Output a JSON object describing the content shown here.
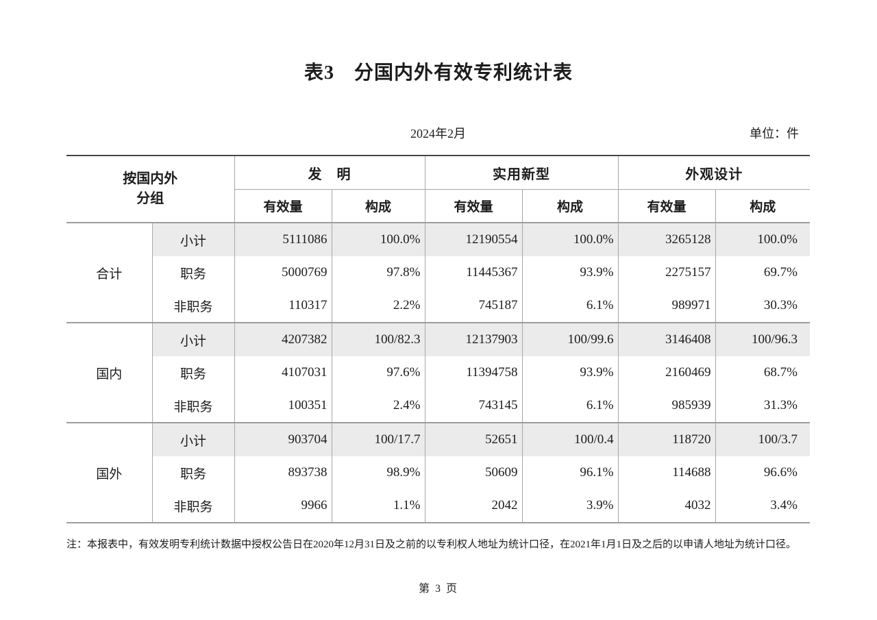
{
  "title": "表3　分国内外有效专利统计表",
  "date": "2024年2月",
  "unit": "单位：件",
  "table": {
    "group_header": "按国内外\n分组",
    "sections": [
      {
        "label": "发　明",
        "subcols": [
          "有效量",
          "构成"
        ]
      },
      {
        "label": "实用新型",
        "subcols": [
          "有效量",
          "构成"
        ]
      },
      {
        "label": "外观设计",
        "subcols": [
          "有效量",
          "构成"
        ]
      }
    ],
    "groups": [
      {
        "label": "合计",
        "rows": [
          {
            "label": "小计",
            "values": [
              "5111086",
              "100.0%",
              "12190554",
              "100.0%",
              "3265128",
              "100.0%"
            ]
          },
          {
            "label": "职务",
            "values": [
              "5000769",
              "97.8%",
              "11445367",
              "93.9%",
              "2275157",
              "69.7%"
            ]
          },
          {
            "label": "非职务",
            "values": [
              "110317",
              "2.2%",
              "745187",
              "6.1%",
              "989971",
              "30.3%"
            ]
          }
        ]
      },
      {
        "label": "国内",
        "rows": [
          {
            "label": "小计",
            "values": [
              "4207382",
              "100/82.3",
              "12137903",
              "100/99.6",
              "3146408",
              "100/96.3"
            ]
          },
          {
            "label": "职务",
            "values": [
              "4107031",
              "97.6%",
              "11394758",
              "93.9%",
              "2160469",
              "68.7%"
            ]
          },
          {
            "label": "非职务",
            "values": [
              "100351",
              "2.4%",
              "743145",
              "6.1%",
              "985939",
              "31.3%"
            ]
          }
        ]
      },
      {
        "label": "国外",
        "rows": [
          {
            "label": "小计",
            "values": [
              "903704",
              "100/17.7",
              "52651",
              "100/0.4",
              "118720",
              "100/3.7"
            ]
          },
          {
            "label": "职务",
            "values": [
              "893738",
              "98.9%",
              "50609",
              "96.1%",
              "114688",
              "96.6%"
            ]
          },
          {
            "label": "非职务",
            "values": [
              "9966",
              "1.1%",
              "2042",
              "3.9%",
              "4032",
              "3.4%"
            ]
          }
        ]
      }
    ]
  },
  "note": "注：本报表中，有效发明专利统计数据中授权公告日在2020年12月31日及之前的以专利权人地址为统计口径，在2021年1月1日及之后的以申请人地址为统计口径。",
  "page_number": "第 3 页",
  "colors": {
    "row_shading": "#ebebeb",
    "grid_line": "#a6a6a6",
    "heavy_line": "#9c9c9c",
    "top_border": "#454545",
    "text": "#1c1c1c"
  }
}
